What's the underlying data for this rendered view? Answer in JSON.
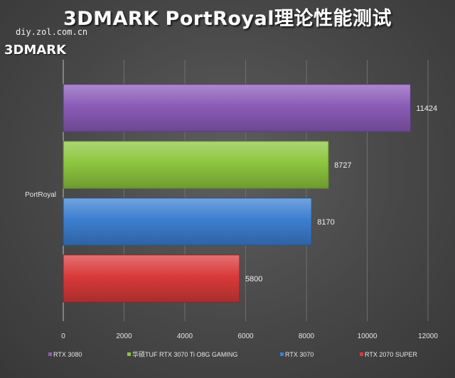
{
  "header": {
    "title": "3DMARK PortRoyal理论性能测试",
    "site": "diy.zol.com.cn",
    "brand": "3DMARK"
  },
  "chart_data": {
    "type": "bar",
    "orientation": "horizontal",
    "categories": [
      "PortRoyal"
    ],
    "series": [
      {
        "name": "RTX 3080",
        "values": [
          11424
        ],
        "color": "#8b5cb8"
      },
      {
        "name": "华硕TUF RTX 3070 Ti O8G GAMING",
        "values": [
          8727
        ],
        "color": "#8dc63f"
      },
      {
        "name": "RTX 3070",
        "values": [
          8170
        ],
        "color": "#3c7fd0"
      },
      {
        "name": "RTX 2070 SUPER",
        "values": [
          5800
        ],
        "color": "#d93a3a"
      }
    ],
    "xlim": [
      0,
      12000
    ],
    "xticks": [
      0,
      2000,
      4000,
      6000,
      8000,
      10000,
      12000
    ],
    "grid": true,
    "legend_position": "bottom"
  }
}
